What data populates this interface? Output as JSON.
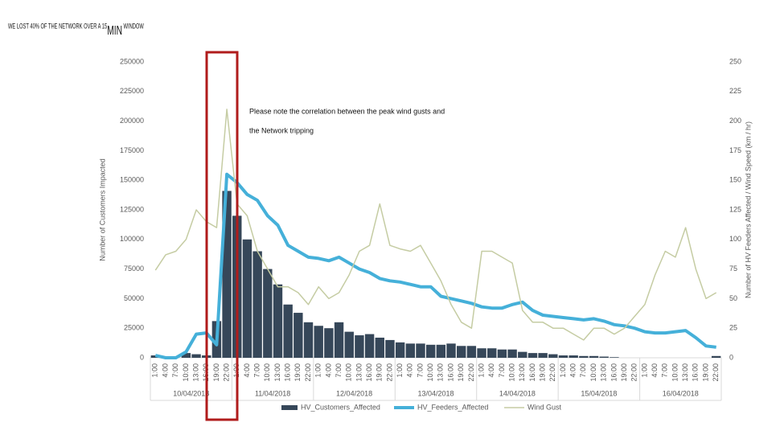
{
  "chart_data": {
    "type": "combo",
    "title_parts": [
      "WE LOST 40% OF THE NETWORK OVER A 15",
      "MIN",
      " WINDOW"
    ],
    "annotation": [
      "Please note the correlation between the peak wind gusts and",
      "the Network tripping"
    ],
    "y_label": "Number of Customers Impacted",
    "y2_label": "Number of HV Feeders Affected / Wind Speed (km / hr)",
    "categories": [
      "1:00",
      "4:00",
      "7:00",
      "10:00",
      "13:00",
      "16:00",
      "19:00",
      "22:00",
      "1:00",
      "4:00",
      "7:00",
      "10:00",
      "13:00",
      "16:00",
      "19:00",
      "22:00",
      "1:00",
      "4:00",
      "7:00",
      "10:00",
      "13:00",
      "16:00",
      "19:00",
      "22:00",
      "1:00",
      "4:00",
      "7:00",
      "10:00",
      "13:00",
      "16:00",
      "19:00",
      "22:00",
      "1:00",
      "4:00",
      "7:00",
      "10:00",
      "13:00",
      "16:00",
      "19:00",
      "22:00",
      "1:00",
      "4:00",
      "7:00",
      "10:00",
      "13:00",
      "16:00",
      "19:00",
      "22:00",
      "1:00",
      "4:00",
      "7:00",
      "10:00",
      "13:00",
      "16:00",
      "19:00",
      "22:00"
    ],
    "groups": [
      "10/04/2018",
      "11/04/2018",
      "12/04/2018",
      "13/04/2018",
      "14/04/2018",
      "15/04/2018",
      "16/04/2018"
    ],
    "ylim": [
      0,
      250000
    ],
    "yticks": [
      0,
      25000,
      50000,
      75000,
      100000,
      125000,
      150000,
      175000,
      200000,
      225000,
      250000
    ],
    "y2lim": [
      0,
      250
    ],
    "y2ticks": [
      0,
      25,
      50,
      75,
      100,
      125,
      150,
      175,
      200,
      225,
      250
    ],
    "series": [
      {
        "name": "HV_Customers_Affected",
        "type": "bar",
        "color": "#364759",
        "values": [
          2000,
          0,
          0,
          4000,
          3000,
          2000,
          31000,
          141000,
          120000,
          100000,
          90000,
          75000,
          62000,
          45000,
          38000,
          30000,
          27000,
          25000,
          30000,
          22000,
          19000,
          20000,
          17000,
          15000,
          13000,
          12000,
          12000,
          11000,
          11000,
          12000,
          10000,
          10000,
          8000,
          8000,
          7000,
          7000,
          5000,
          4000,
          4000,
          3000,
          2000,
          2000,
          1500,
          1500,
          1000,
          500,
          0,
          0,
          0,
          0,
          0,
          0,
          0,
          0,
          0,
          1500
        ]
      },
      {
        "name": "HV_Feeders_Affected",
        "type": "line",
        "axis": "y2",
        "color": "#45b0d9",
        "width": 4,
        "values": [
          2,
          0,
          0,
          5,
          20,
          21,
          11,
          155,
          148,
          138,
          133,
          120,
          112,
          95,
          90,
          85,
          84,
          82,
          85,
          80,
          75,
          72,
          67,
          65,
          64,
          62,
          60,
          60,
          52,
          50,
          48,
          46,
          43,
          42,
          42,
          45,
          47,
          40,
          36,
          35,
          34,
          33,
          32,
          33,
          31,
          28,
          27,
          25,
          22,
          21,
          21,
          22,
          23,
          17,
          10,
          9
        ]
      },
      {
        "name": "Wind Gust",
        "type": "line",
        "axis": "y2",
        "color": "#c5cca3",
        "width": 1.5,
        "values": [
          74,
          87,
          90,
          100,
          125,
          115,
          110,
          210,
          130,
          120,
          90,
          75,
          60,
          60,
          55,
          45,
          60,
          50,
          55,
          70,
          90,
          95,
          130,
          95,
          92,
          90,
          95,
          80,
          65,
          45,
          30,
          25,
          90,
          90,
          85,
          80,
          40,
          30,
          30,
          25,
          25,
          20,
          15,
          25,
          25,
          20,
          25,
          35,
          45,
          70,
          90,
          85,
          110,
          75,
          50,
          55
        ]
      }
    ]
  }
}
